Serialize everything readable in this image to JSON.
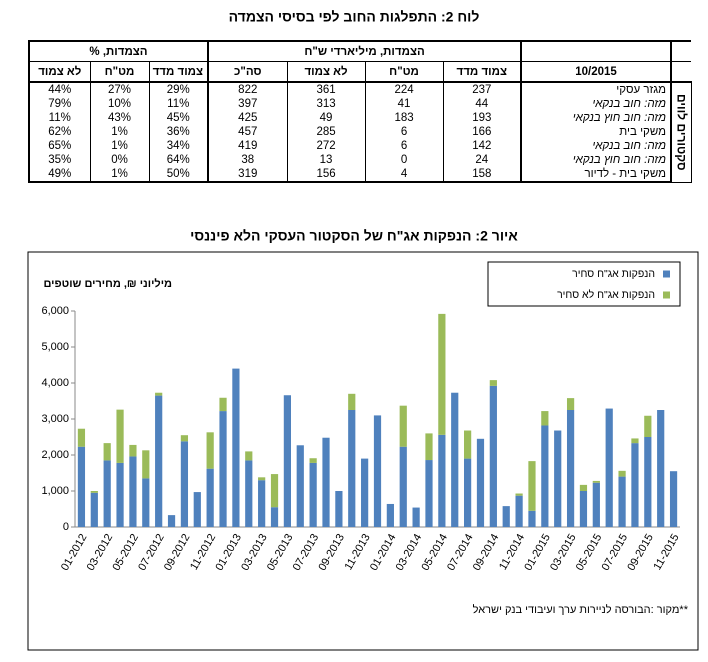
{
  "table": {
    "title": "לוח 2: התפלגות החוב לפי בסיסי הצמדה",
    "group_headers": [
      "הצמדות, מיליארדי ש\"ח",
      "הצמדות, %"
    ],
    "period": "10/2015",
    "columns": [
      "צמוד מדד",
      "מט\"ח",
      "לא צמוד",
      "סה\"כ",
      "צמוד מדד",
      "מט\"ח",
      "לא צמוד"
    ],
    "side_label": "סקטורים לווים",
    "rows": [
      {
        "sector": "מגזר עסקי",
        "values": [
          "237",
          "224",
          "361",
          "822",
          "29%",
          "27%",
          "44%"
        ]
      },
      {
        "sector": "מזה: חוב בנקאי",
        "values": [
          "44",
          "41",
          "313",
          "397",
          "11%",
          "10%",
          "79%"
        ]
      },
      {
        "sector": "מזה: חוב חוץ בנקאי",
        "values": [
          "193",
          "183",
          "49",
          "425",
          "45%",
          "43%",
          "11%"
        ]
      },
      {
        "sector": "משקי בית",
        "values": [
          "166",
          "6",
          "285",
          "457",
          "36%",
          "1%",
          "62%"
        ]
      },
      {
        "sector": "מזה: חוב בנקאי",
        "values": [
          "142",
          "6",
          "272",
          "419",
          "34%",
          "1%",
          "65%"
        ]
      },
      {
        "sector": "מזה: חוב חוץ בנקאי",
        "values": [
          "24",
          "0",
          "13",
          "38",
          "64%",
          "0%",
          "35%"
        ]
      },
      {
        "sector": "משקי בית - לדיור",
        "values": [
          "158",
          "4",
          "156",
          "319",
          "50%",
          "1%",
          "49%"
        ]
      }
    ]
  },
  "chart_data": {
    "type": "stacked_bar",
    "title": "איור 2: הנפקות אג\"ח של הסקטור העסקי הלא פיננסי",
    "y_label": "מיליוני ₪, מחירים שוטפים",
    "source": "**מקור :הבורסה לניירות ערך ועיבודי בנק ישראל",
    "categories": [
      "01-2012",
      null,
      "03-2012",
      null,
      "05-2012",
      null,
      "07-2012",
      null,
      "09-2012",
      null,
      "11-2012",
      null,
      "01-2013",
      null,
      "03-2013",
      null,
      "05-2013",
      null,
      "07-2013",
      null,
      "09-2013",
      null,
      "11-2013",
      null,
      "01-2014",
      null,
      "03-2014",
      null,
      "05-2014",
      null,
      "07-2014",
      null,
      "09-2014",
      null,
      "11-2014",
      null,
      "01-2015",
      null,
      "03-2015",
      null,
      "05-2015",
      null,
      "07-2015",
      null,
      "09-2015",
      null,
      "11-2015"
    ],
    "series": [
      {
        "name": "הנפקות אג\"ח סחיר",
        "color": "#4f81bd",
        "values": [
          2230,
          950,
          1850,
          1780,
          1960,
          1350,
          3650,
          330,
          2380,
          970,
          1620,
          3220,
          4400,
          1850,
          1300,
          550,
          3660,
          2270,
          1780,
          2480,
          1000,
          3250,
          1900,
          3100,
          640,
          2230,
          540,
          1860,
          2560,
          3730,
          1900,
          2450,
          3920,
          580,
          870,
          450,
          2820,
          2680,
          3250,
          1000,
          1230,
          3290,
          1400,
          2330,
          2500,
          3250,
          1550
        ]
      },
      {
        "name": "הנפקות אג\"ח לא סחיר",
        "color": "#9bbb59",
        "values": [
          500,
          50,
          480,
          1480,
          320,
          780,
          80,
          0,
          170,
          0,
          1010,
          370,
          0,
          250,
          80,
          920,
          0,
          0,
          130,
          0,
          0,
          450,
          0,
          0,
          0,
          1140,
          0,
          740,
          3360,
          0,
          780,
          0,
          160,
          0,
          60,
          1380,
          400,
          0,
          330,
          170,
          50,
          0,
          160,
          130,
          590,
          0,
          0
        ]
      }
    ],
    "ylim": [
      0,
      6000
    ],
    "yticks": [
      0,
      {
        "value": 1000,
        "label": "1,000"
      },
      {
        "value": 2000,
        "label": "2,000"
      },
      {
        "value": 3000,
        "label": "3,000"
      },
      {
        "value": 4000,
        "label": "4,000"
      },
      {
        "value": 5000,
        "label": "5,000"
      },
      {
        "value": 6000,
        "label": "6,000"
      }
    ],
    "grid": false,
    "legend": "top-right"
  }
}
